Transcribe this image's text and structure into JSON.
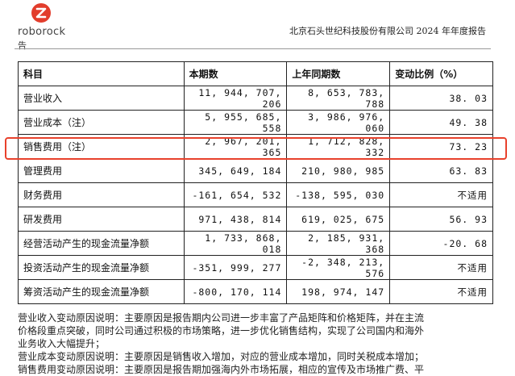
{
  "header": {
    "brand": "roborock",
    "sub": "告",
    "report_title": "北京石头世纪科技股份有限公司 2024 年年度报告",
    "brand_color": "#e23d2c"
  },
  "table": {
    "columns": [
      "科目",
      "本期数",
      "上年同期数",
      "变动比例（%）"
    ],
    "rows": [
      [
        "营业收入",
        "11, 944, 707, 206",
        "8, 653, 783, 788",
        "38. 03"
      ],
      [
        "营业成本（注）",
        "5, 955, 685, 558",
        "3, 986, 976, 060",
        "49. 38"
      ],
      [
        "销售费用（注）",
        "2, 967, 201, 365",
        "1, 712, 828, 332",
        "73. 23"
      ],
      [
        "管理费用",
        "345, 649, 184",
        "210, 980, 985",
        "63. 83"
      ],
      [
        "财务费用",
        "-161, 654, 532",
        "-138, 595, 030",
        "不适用"
      ],
      [
        "研发费用",
        "971, 438, 814",
        "619, 025, 675",
        "56. 93"
      ],
      [
        "经营活动产生的现金流量净额",
        "1, 733, 868, 018",
        "2, 185, 931, 368",
        "-20. 68"
      ],
      [
        "投资活动产生的现金流量净额",
        "-351, 999, 277",
        "-2, 348, 213, 576",
        "不适用"
      ],
      [
        "筹资活动产生的现金流量净额",
        "-800, 170, 114",
        "198, 974, 147",
        "不适用"
      ]
    ],
    "highlight_color": "#e8412c"
  },
  "notes": [
    "营业收入变动原因说明：主要原因是报告期内公司进一步丰富了产品矩阵和价格矩阵，并在主流",
    "价格段重点突破，同时公司通过积极的市场策略，进一步优化销售结构，实现了公司国内和海外",
    "业务收入大幅提升；",
    "营业成本变动原因说明：主要原因是销售收入增加，对应的营业成本增加，同时关税成本增加；",
    "销售费用变动原因说明：主要原因是报告期加强海内外市场拓展，相应的宣传及市场推广费、平"
  ]
}
